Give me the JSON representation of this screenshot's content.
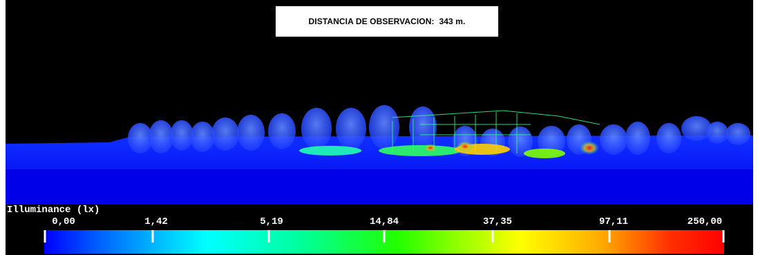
{
  "observation": {
    "label": "DISTANCIA DE OBSERVACION:",
    "value": "343 m."
  },
  "legend": {
    "title": "Illuminance (lx)",
    "ticks": [
      "0,00",
      "1,42",
      "5,19",
      "14,84",
      "37,35",
      "97,11",
      "250,00"
    ]
  },
  "colors": {
    "background": "#000000",
    "ground": "#0000ff",
    "scale_low": "#0000ff",
    "scale_high": "#ff0000"
  }
}
